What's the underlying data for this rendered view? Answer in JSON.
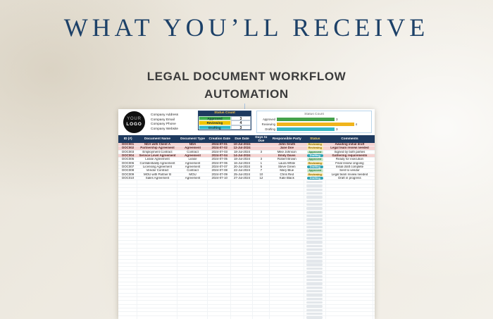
{
  "page": {
    "title": "WHAT YOU’LL RECEIVE",
    "subtitle_line1": "LEGAL DOCUMENT WORKFLOW",
    "subtitle_line2": "AUTOMATION"
  },
  "logo": {
    "line1": "YOUR",
    "line2": "LOGO"
  },
  "company_info": [
    "Company Address",
    "Company Email",
    "Company Phone",
    "Company Website"
  ],
  "status_count": {
    "title": "Status Count",
    "rows": [
      {
        "label": "Approved",
        "value": "3",
        "color": "#3fae4c"
      },
      {
        "label": "Reviewing",
        "value": "4",
        "color": "#f2c500"
      },
      {
        "label": "Drafting",
        "value": "3",
        "color": "#30b9c9"
      }
    ]
  },
  "chart_data": {
    "type": "bar",
    "orientation": "horizontal",
    "title": "Status Count",
    "categories": [
      "Approved",
      "Reviewing",
      "Drafting"
    ],
    "values": [
      3,
      4,
      3
    ],
    "colors": [
      "#44a24a",
      "#f0b41c",
      "#36b7c3"
    ],
    "xlim": [
      0,
      4.6
    ],
    "data_labels": true,
    "legend": false,
    "grid": false
  },
  "table": {
    "headers": [
      {
        "label": "ID (#)"
      },
      {
        "label": "Document Name"
      },
      {
        "label": "Document Type"
      },
      {
        "label": "Creation Date"
      },
      {
        "label": "Due Date"
      },
      {
        "label": "Days to Due"
      },
      {
        "label": "Responsible Party"
      },
      {
        "label": "Status",
        "accent": true
      },
      {
        "label": "Comments"
      }
    ],
    "rows": [
      {
        "id": "DOC001",
        "name": "NDA with Client A",
        "type": "NDA",
        "created": "2024-07-01",
        "due": "10-Jul-2024",
        "days": "",
        "party": "John Smith",
        "status": "Reviewing",
        "comments": "Awaiting initial draft",
        "highlight": true
      },
      {
        "id": "DOC002",
        "name": "Partnership Agreement",
        "type": "Agreement",
        "created": "2024-07-02",
        "due": "12-Jul-2024",
        "days": "",
        "party": "Jane Doe",
        "status": "Reviewing",
        "comments": "Legal team review needed",
        "highlight": true
      },
      {
        "id": "DOC003",
        "name": "Employment Contract",
        "type": "Contract",
        "created": "2024-07-03",
        "due": "18-Jul-2024",
        "days": "3",
        "party": "Mike Johnson",
        "status": "Approved",
        "comments": "Signed by both parties",
        "highlight": false
      },
      {
        "id": "DOC004",
        "name": "Service Level Agreement",
        "type": "Agreement",
        "created": "2024-07-04",
        "due": "14-Jul-2024",
        "days": "",
        "party": "Emily Davis",
        "status": "Drafting",
        "comments": "Gathering requirements",
        "highlight": true
      },
      {
        "id": "DOC005",
        "name": "Lease Agreement",
        "type": "Lease",
        "created": "2024-07-05",
        "due": "18-Jul-2024",
        "days": "3",
        "party": "Robert Brown",
        "status": "Approved",
        "comments": "Ready for execution",
        "highlight": false
      },
      {
        "id": "DOC006",
        "name": "Confidentiality Agreement",
        "type": "Agreement",
        "created": "2024-07-06",
        "due": "16-Jul-2024",
        "days": "1",
        "party": "Laura White",
        "status": "Reviewing",
        "comments": "Final review ongoing",
        "highlight": false
      },
      {
        "id": "DOC007",
        "name": "Licensing Agreement",
        "type": "Agreement",
        "created": "2024-07-07",
        "due": "20-Jul-2024",
        "days": "5",
        "party": "Steve Green",
        "status": "Drafting",
        "comments": "Initial draft complete",
        "highlight": false
      },
      {
        "id": "DOC008",
        "name": "Vendor Contract",
        "type": "Contract",
        "created": "2024-07-08",
        "due": "22-Jul-2024",
        "days": "7",
        "party": "Mary Blue",
        "status": "Approved",
        "comments": "Sent to vendor",
        "highlight": false
      },
      {
        "id": "DOC009",
        "name": "MOU with Partner B",
        "type": "MOU",
        "created": "2024-07-09",
        "due": "25-Jul-2024",
        "days": "10",
        "party": "Chris Red",
        "status": "Reviewing",
        "comments": "Legal team review needed",
        "highlight": false
      },
      {
        "id": "DOC010",
        "name": "Sales Agreement",
        "type": "Agreement",
        "created": "2024-07-10",
        "due": "27-Jul-2024",
        "days": "12",
        "party": "Kate Black",
        "status": "Drafting",
        "comments": "Draft in progress",
        "highlight": false
      }
    ]
  }
}
